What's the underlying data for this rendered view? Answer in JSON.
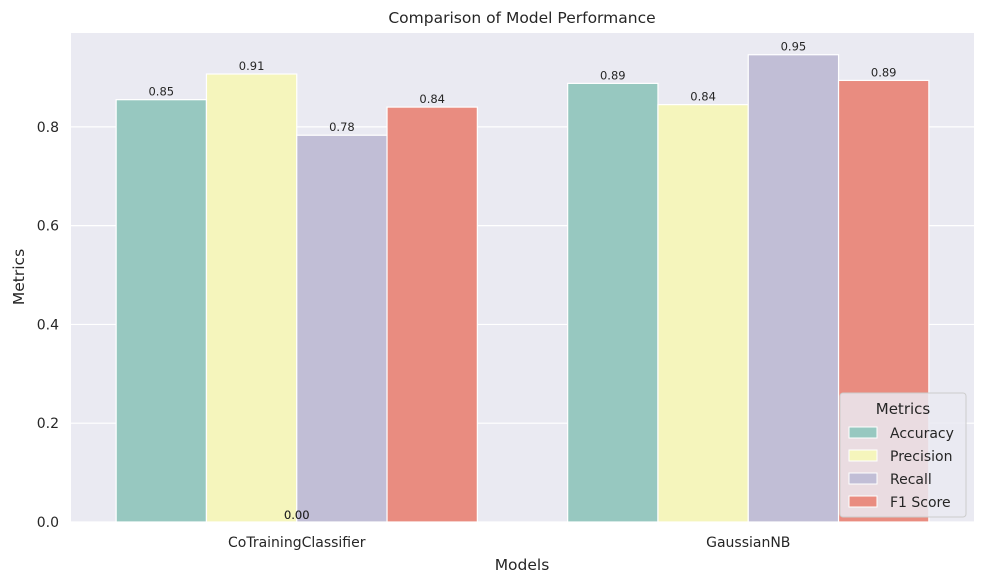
{
  "chart_data": {
    "type": "bar",
    "title": "Comparison of Model Performance",
    "xlabel": "Models",
    "ylabel": "Metrics",
    "categories": [
      "CoTrainingClassifier",
      "GaussianNB"
    ],
    "series": [
      {
        "name": "Accuracy",
        "values": [
          0.855,
          0.888
        ],
        "labels": [
          "0.85",
          "0.89"
        ],
        "color": "#97c8c0"
      },
      {
        "name": "Precision",
        "values": [
          0.907,
          0.845
        ],
        "labels": [
          "0.91",
          "0.84"
        ],
        "color": "#f5f5bc"
      },
      {
        "name": "Recall",
        "values": [
          0.783,
          0.946
        ],
        "labels": [
          "0.78",
          "0.95"
        ],
        "color": "#c1bed6"
      },
      {
        "name": "F1 Score",
        "values": [
          0.84,
          0.894
        ],
        "labels": [
          "0.84",
          "0.89"
        ],
        "color": "#e98c80"
      }
    ],
    "extra_annotations": [
      "0.00",
      "0.00"
    ],
    "yticks": [
      0.0,
      0.2,
      0.4,
      0.6,
      0.8
    ],
    "ytick_labels": [
      "0.0",
      "0.2",
      "0.4",
      "0.6",
      "0.8"
    ],
    "ylim": [
      0,
      0.99
    ],
    "grid": true,
    "legend": {
      "title": "Metrics",
      "placement": "lower-right"
    },
    "style": {
      "plot_background": "#eaeaf2",
      "grid_color": "#ffffff"
    }
  }
}
